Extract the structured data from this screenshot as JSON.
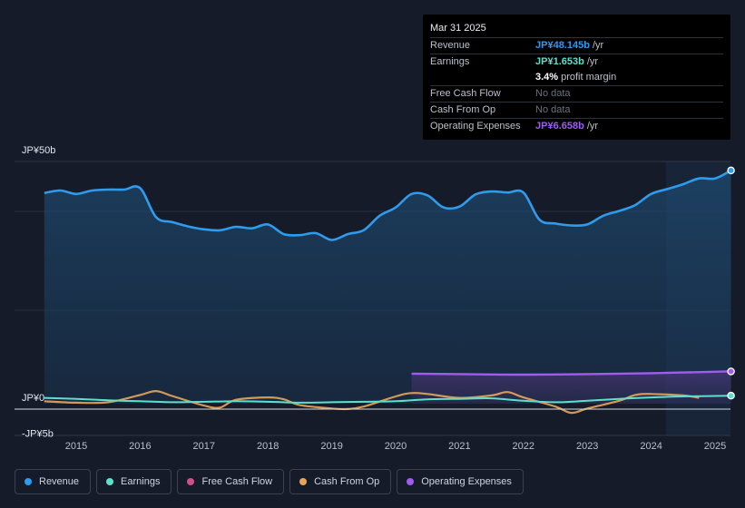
{
  "tooltip": {
    "date": "Mar 31 2025",
    "rows": [
      {
        "label": "Revenue",
        "value": "JP¥48.145b",
        "unit": "/yr",
        "color": "#2f9bec"
      },
      {
        "label": "Earnings",
        "value": "JP¥1.653b",
        "unit": "/yr",
        "color": "#5ce0cc"
      },
      {
        "label": "",
        "value": "3.4%",
        "unit": "profit margin",
        "color": "#ffffff"
      },
      {
        "label": "Free Cash Flow",
        "value": "No data",
        "color": "#6b7280"
      },
      {
        "label": "Cash From Op",
        "value": "No data",
        "color": "#6b7280"
      },
      {
        "label": "Operating Expenses",
        "value": "JP¥6.658b",
        "unit": "/yr",
        "color": "#a05cf0"
      }
    ]
  },
  "legend": [
    {
      "label": "Revenue",
      "color": "#2f9bec"
    },
    {
      "label": "Earnings",
      "color": "#5ce0cc"
    },
    {
      "label": "Free Cash Flow",
      "color": "#d24f86"
    },
    {
      "label": "Cash From Op",
      "color": "#e8a55a"
    },
    {
      "label": "Operating Expenses",
      "color": "#a05cf0"
    }
  ],
  "chart_data": {
    "type": "line",
    "title": "",
    "xlabel": "",
    "ylabel": "",
    "ylim": [
      -5,
      50
    ],
    "y_tick_labels": [
      "JP¥50b",
      "JP¥0",
      "-JP¥5b"
    ],
    "x_tick_labels": [
      "2015",
      "2016",
      "2017",
      "2018",
      "2019",
      "2020",
      "2021",
      "2022",
      "2023",
      "2024",
      "2025"
    ],
    "unit": "JP¥ billions",
    "series": [
      {
        "name": "Revenue",
        "color": "#2f9bec",
        "x": [
          2014.5,
          2014.75,
          2015.0,
          2015.25,
          2015.5,
          2015.75,
          2016.0,
          2016.25,
          2016.5,
          2016.75,
          2017.0,
          2017.25,
          2017.5,
          2017.75,
          2018.0,
          2018.25,
          2018.5,
          2018.75,
          2019.0,
          2019.25,
          2019.5,
          2019.75,
          2020.0,
          2020.25,
          2020.5,
          2020.75,
          2021.0,
          2021.25,
          2021.5,
          2021.75,
          2022.0,
          2022.25,
          2022.5,
          2022.75,
          2023.0,
          2023.25,
          2023.5,
          2023.75,
          2024.0,
          2024.25,
          2024.5,
          2024.75,
          2025.0,
          2025.25
        ],
        "values": [
          43.5,
          44.0,
          43.3,
          44.0,
          44.2,
          44.2,
          44.5,
          38.5,
          37.5,
          36.6,
          36.0,
          35.8,
          36.5,
          36.2,
          37.0,
          35.0,
          34.8,
          35.2,
          33.8,
          35.0,
          35.8,
          38.8,
          40.5,
          43.3,
          43.0,
          40.5,
          40.7,
          43.2,
          43.8,
          43.6,
          43.6,
          38.0,
          37.2,
          36.8,
          37.0,
          38.8,
          39.8,
          41.0,
          43.3,
          44.3,
          45.3,
          46.5,
          46.5,
          48.145
        ]
      },
      {
        "name": "Earnings",
        "color": "#5ce0cc",
        "x": [
          2014.5,
          2015.0,
          2015.5,
          2016.0,
          2016.5,
          2017.0,
          2017.5,
          2018.0,
          2018.5,
          2019.0,
          2019.5,
          2020.0,
          2020.5,
          2021.0,
          2021.5,
          2022.0,
          2022.5,
          2023.0,
          2023.5,
          2024.0,
          2024.5,
          2025.0,
          2025.25
        ],
        "values": [
          1.2,
          1.0,
          0.7,
          0.5,
          0.3,
          0.4,
          0.5,
          0.4,
          0.2,
          0.3,
          0.4,
          0.5,
          0.9,
          1.0,
          1.1,
          0.6,
          0.3,
          0.6,
          1.0,
          1.3,
          1.5,
          1.6,
          1.653
        ]
      },
      {
        "name": "Cash From Op",
        "color": "#e8a55a",
        "x": [
          2014.5,
          2015.0,
          2015.5,
          2016.0,
          2016.25,
          2016.5,
          2017.0,
          2017.25,
          2017.5,
          2018.0,
          2018.25,
          2018.5,
          2019.0,
          2019.25,
          2019.5,
          2020.0,
          2020.25,
          2020.5,
          2021.0,
          2021.5,
          2021.75,
          2022.0,
          2022.5,
          2022.75,
          2023.0,
          2023.5,
          2023.75,
          2024.0,
          2024.5,
          2024.75
        ],
        "values": [
          0.5,
          0.2,
          0.3,
          1.8,
          2.6,
          1.6,
          -0.4,
          -0.8,
          0.8,
          1.3,
          0.9,
          -0.3,
          -1.0,
          -1.1,
          -0.6,
          1.5,
          2.2,
          2.0,
          1.2,
          1.7,
          2.4,
          1.3,
          -0.6,
          -1.9,
          -1.0,
          0.6,
          1.8,
          2.0,
          1.7,
          1.2
        ]
      },
      {
        "name": "Operating Expenses",
        "color": "#a05cf0",
        "x": [
          2020.25,
          2021.0,
          2022.0,
          2023.0,
          2024.0,
          2025.0,
          2025.25
        ],
        "values": [
          6.2,
          6.1,
          6.0,
          6.1,
          6.3,
          6.6,
          6.658
        ]
      }
    ]
  }
}
